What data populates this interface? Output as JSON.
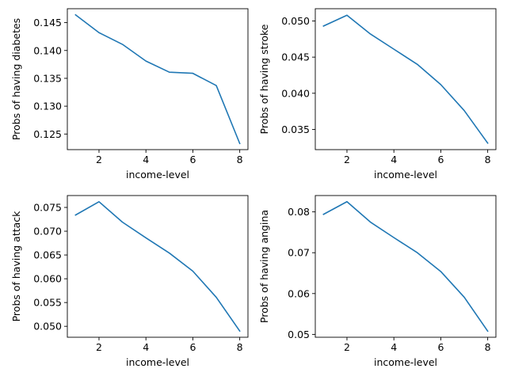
{
  "colors": {
    "line": "#1f77b4",
    "axes": "#000000",
    "background": "#ffffff"
  },
  "chart_data": [
    {
      "type": "line",
      "xlabel": "income-level",
      "ylabel": "Probs of having diabetes",
      "x": [
        1,
        2,
        3,
        4,
        5,
        6,
        7,
        8
      ],
      "values": [
        0.1464,
        0.1432,
        0.1411,
        0.1381,
        0.1361,
        0.1359,
        0.1337,
        0.1233
      ],
      "xlim": [
        0.65,
        8.35
      ],
      "ylim": [
        0.1222,
        0.1475
      ],
      "xticks": [
        2,
        4,
        6,
        8
      ],
      "yticks": [
        0.125,
        0.13,
        0.135,
        0.14,
        0.145
      ],
      "xtick_labels": [
        "2",
        "4",
        "6",
        "8"
      ],
      "ytick_labels": [
        "0.125",
        "0.130",
        "0.135",
        "0.140",
        "0.145"
      ],
      "grid": false
    },
    {
      "type": "line",
      "xlabel": "income-level",
      "ylabel": "Probs of having stroke",
      "x": [
        1,
        2,
        3,
        4,
        5,
        6,
        7,
        8
      ],
      "values": [
        0.0493,
        0.0508,
        0.0482,
        0.0461,
        0.044,
        0.0412,
        0.0376,
        0.0331
      ],
      "xlim": [
        0.65,
        8.35
      ],
      "ylim": [
        0.0322,
        0.0517
      ],
      "xticks": [
        2,
        4,
        6,
        8
      ],
      "yticks": [
        0.035,
        0.04,
        0.045,
        0.05
      ],
      "xtick_labels": [
        "2",
        "4",
        "6",
        "8"
      ],
      "ytick_labels": [
        "0.035",
        "0.040",
        "0.045",
        "0.050"
      ],
      "grid": false
    },
    {
      "type": "line",
      "xlabel": "income-level",
      "ylabel": "Probs of having attack",
      "x": [
        1,
        2,
        3,
        4,
        5,
        6,
        7,
        8
      ],
      "values": [
        0.0734,
        0.0762,
        0.0719,
        0.0686,
        0.0654,
        0.0616,
        0.0561,
        0.049
      ],
      "xlim": [
        0.65,
        8.35
      ],
      "ylim": [
        0.0477,
        0.0775
      ],
      "xticks": [
        2,
        4,
        6,
        8
      ],
      "yticks": [
        0.05,
        0.055,
        0.06,
        0.065,
        0.07,
        0.075
      ],
      "xtick_labels": [
        "2",
        "4",
        "6",
        "8"
      ],
      "ytick_labels": [
        "0.050",
        "0.055",
        "0.060",
        "0.065",
        "0.070",
        "0.075"
      ],
      "grid": false
    },
    {
      "type": "line",
      "xlabel": "income-level",
      "ylabel": "Probs of having angina",
      "x": [
        1,
        2,
        3,
        4,
        5,
        6,
        7,
        8
      ],
      "values": [
        0.0794,
        0.0825,
        0.0775,
        0.0737,
        0.07,
        0.0654,
        0.0591,
        0.0508
      ],
      "xlim": [
        0.65,
        8.35
      ],
      "ylim": [
        0.0493,
        0.084
      ],
      "xticks": [
        2,
        4,
        6,
        8
      ],
      "yticks": [
        0.05,
        0.06,
        0.07,
        0.08
      ],
      "xtick_labels": [
        "2",
        "4",
        "6",
        "8"
      ],
      "ytick_labels": [
        "0.05",
        "0.06",
        "0.07",
        "0.08"
      ],
      "grid": false
    }
  ]
}
